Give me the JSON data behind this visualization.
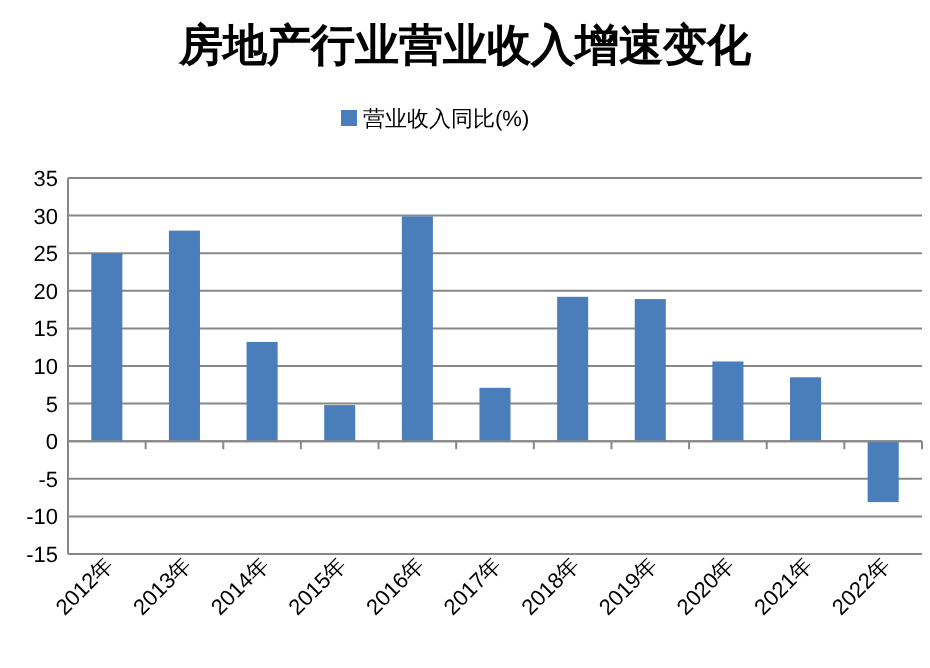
{
  "chart_data": {
    "type": "bar",
    "title": "房地产行业营业收入增速变化",
    "categories": [
      "2012年",
      "2013年",
      "2014年",
      "2015年",
      "2016年",
      "2017年",
      "2018年",
      "2019年",
      "2020年",
      "2021年",
      "2022年"
    ],
    "series": [
      {
        "name": "营业收入同比(%)",
        "color": "#4a7ebb",
        "values": [
          25,
          28,
          13.2,
          4.8,
          29.9,
          7.1,
          19.2,
          18.9,
          10.6,
          8.5,
          -8.1
        ]
      }
    ],
    "ylim": [
      -15,
      35
    ],
    "yticks": [
      -15,
      -10,
      -5,
      0,
      5,
      10,
      15,
      20,
      25,
      30,
      35
    ],
    "grid": "y",
    "legend": "top"
  }
}
